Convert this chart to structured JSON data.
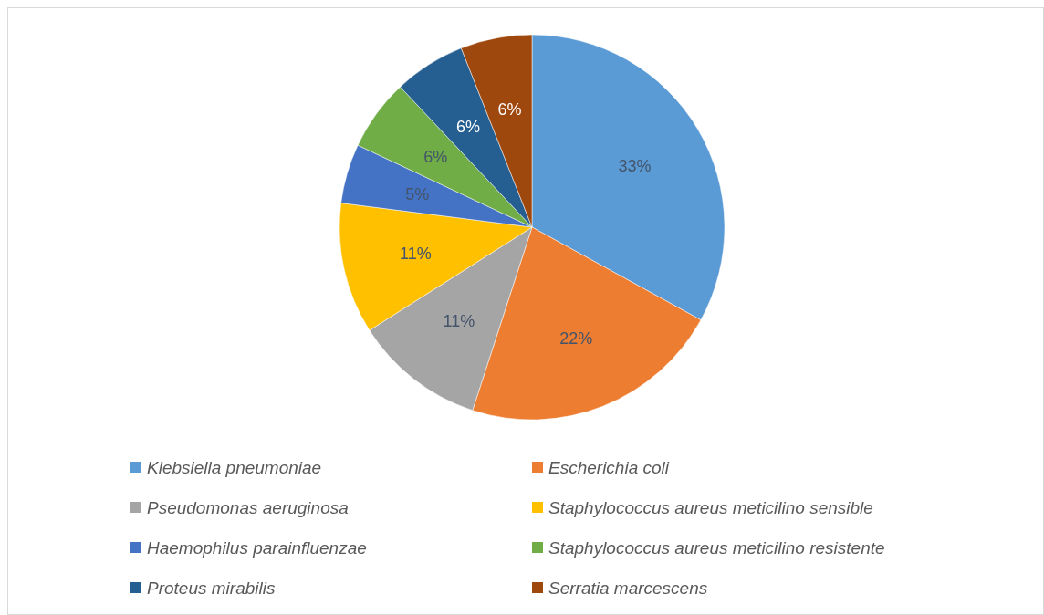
{
  "chart_data": {
    "type": "pie",
    "categories": [
      "Klebsiella pneumoniae",
      "Escherichia coli",
      "Pseudomonas aeruginosa",
      "Staphylococcus aureus meticilino sensible",
      "Haemophilus parainfluenzae",
      "Staphylococcus aureus meticilino resistente",
      "Proteus mirabilis",
      "Serratia marcescens"
    ],
    "values": [
      33,
      22,
      11,
      11,
      5,
      6,
      6,
      6
    ],
    "value_labels": [
      "33%",
      "22%",
      "11%",
      "11%",
      "5%",
      "6%",
      "6%",
      "6%"
    ],
    "colors": [
      "#5b9bd5",
      "#ed7d31",
      "#a5a5a5",
      "#ffc000",
      "#4472c4",
      "#70ad47",
      "#255e91",
      "#9e480e"
    ],
    "legend": "bottom"
  }
}
